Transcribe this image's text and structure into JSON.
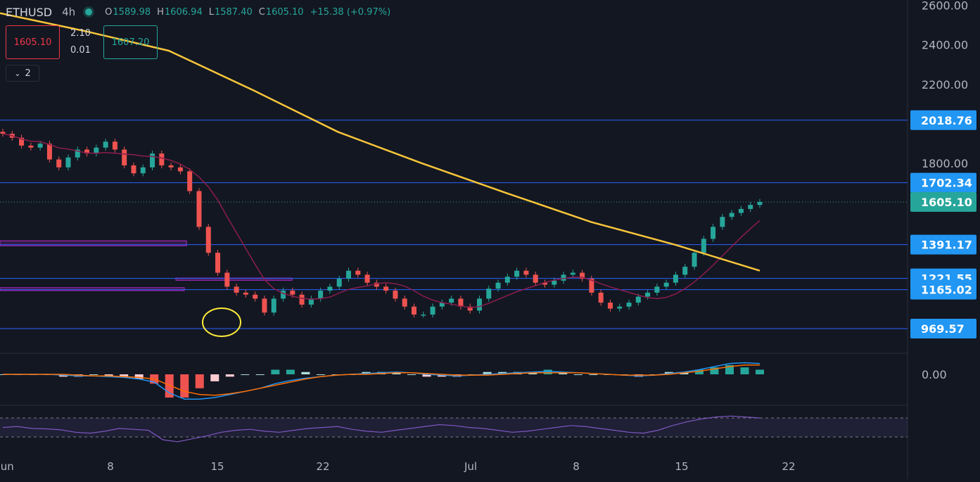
{
  "header": {
    "symbol": "ETHUSD",
    "timeframe": "4h",
    "open_label": "O",
    "open": "1589.98",
    "high_label": "H",
    "high": "1606.94",
    "low_label": "L",
    "low": "1587.40",
    "close_label": "C",
    "close": "1605.10",
    "change": "+15.38 (+0.97%)"
  },
  "trade": {
    "sell": "1605.10",
    "buy": "1607.20",
    "spread_top": "2.10",
    "spread_bottom": "0.01"
  },
  "indicators_toggle": {
    "count": "2"
  },
  "colors": {
    "background": "#131722",
    "up": "#26a69a",
    "down": "#ef5350",
    "ma200": "#f7c53a",
    "ma50": "#8b1d4c",
    "hline": "#2962ff",
    "zone": "#9c27b0",
    "macd": "#2196f3",
    "signal": "#ff6d00",
    "rsi": "#7e57c2",
    "annotation": "#ffeb3b",
    "price_label": "#2196f3"
  },
  "chart_data": [
    {
      "type": "candlestick",
      "symbol": "ETHUSD",
      "interval": "4h",
      "y_axis_ticks": [
        1800,
        2200,
        2400,
        2600
      ],
      "y_axis_labels": [
        "1800.00",
        "2200.00",
        "2400.00",
        "2600.00"
      ],
      "x_axis_labels": [
        "Jun",
        "8",
        "15",
        "22",
        "Jul",
        "8",
        "15",
        "22"
      ],
      "horizontal_levels": [
        {
          "value": 2018.76,
          "label": "2018.76"
        },
        {
          "value": 1702.34,
          "label": "1702.34"
        },
        {
          "value": 1391.17,
          "label": "1391.17"
        },
        {
          "value": 1221.55,
          "label": "1221.55"
        },
        {
          "value": 1165.02,
          "label": "1165.02"
        },
        {
          "value": 969.57,
          "label": "969.57"
        }
      ],
      "last_price": {
        "value": 1605.1,
        "label": "1605.10"
      },
      "candle_closes": [
        1950,
        1930,
        1890,
        1880,
        1900,
        1820,
        1780,
        1830,
        1870,
        1850,
        1880,
        1910,
        1870,
        1790,
        1750,
        1780,
        1850,
        1790,
        1780,
        1760,
        1660,
        1480,
        1350,
        1250,
        1180,
        1150,
        1140,
        1120,
        1050,
        1120,
        1160,
        1140,
        1090,
        1120,
        1160,
        1180,
        1220,
        1260,
        1240,
        1200,
        1180,
        1160,
        1120,
        1080,
        1040,
        1040,
        1080,
        1100,
        1120,
        1080,
        1060,
        1120,
        1170,
        1200,
        1230,
        1260,
        1240,
        1200,
        1190,
        1210,
        1240,
        1250,
        1220,
        1150,
        1100,
        1070,
        1080,
        1100,
        1130,
        1150,
        1180,
        1200,
        1240,
        1280,
        1350,
        1420,
        1480,
        1530,
        1550,
        1570,
        1590,
        1605
      ]
    },
    {
      "type": "line",
      "name": "MACD",
      "zero_label": "0.00",
      "series": [
        {
          "values": [
            0,
            0,
            0,
            0,
            -1,
            -2,
            -2,
            -3,
            -4,
            -6,
            -10,
            -24,
            -32,
            -32,
            -30,
            -26,
            -22,
            -18,
            -12,
            -8,
            -5,
            -3,
            -1,
            0,
            1,
            2,
            3,
            2,
            0,
            -1,
            -2,
            -1,
            0,
            1,
            2,
            3,
            4,
            3,
            2,
            1,
            0,
            -1,
            -2,
            -1,
            1,
            3,
            6,
            10,
            14,
            15,
            14
          ]
        },
        {
          "values": [
            0,
            0,
            0,
            0,
            0,
            -1,
            -2,
            -2,
            -3,
            -4,
            -6,
            -14,
            -22,
            -26,
            -27,
            -25,
            -22,
            -18,
            -14,
            -10,
            -6,
            -3,
            -1,
            0,
            0,
            1,
            2,
            2,
            1,
            0,
            -1,
            -1,
            -1,
            0,
            1,
            2,
            2,
            2,
            2,
            1,
            0,
            -1,
            -1,
            -1,
            0,
            2,
            4,
            7,
            10,
            12,
            12
          ]
        }
      ]
    },
    {
      "type": "line",
      "name": "RSI",
      "values": [
        50,
        52,
        48,
        47,
        45,
        40,
        38,
        42,
        48,
        46,
        44,
        24,
        20,
        26,
        32,
        40,
        44,
        46,
        42,
        40,
        44,
        48,
        50,
        52,
        46,
        42,
        40,
        44,
        48,
        52,
        56,
        54,
        50,
        48,
        44,
        40,
        42,
        46,
        50,
        54,
        52,
        48,
        44,
        40,
        38,
        44,
        54,
        62,
        68,
        72,
        74,
        72,
        70
      ]
    }
  ]
}
